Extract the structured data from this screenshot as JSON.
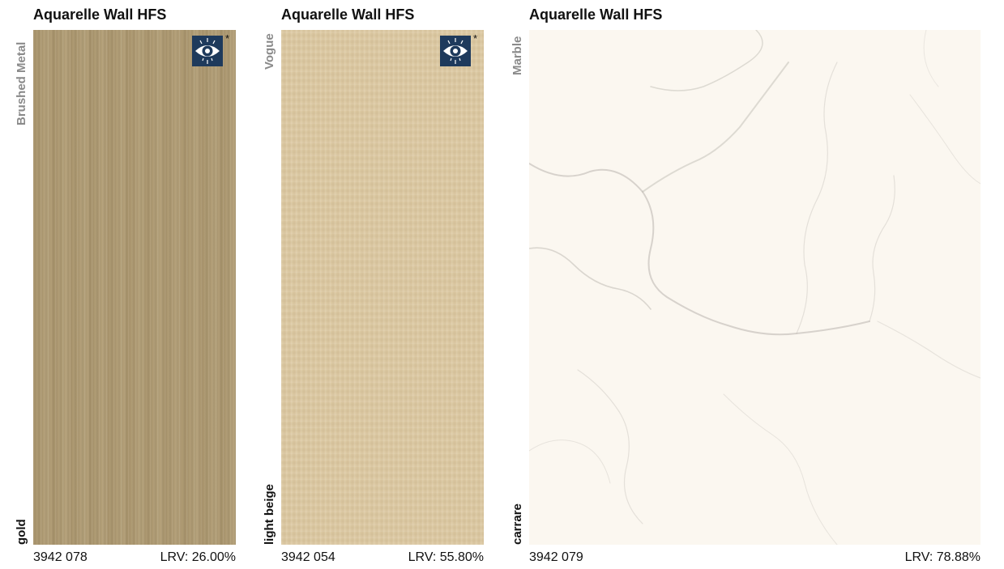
{
  "panels": [
    {
      "title": "Aquarelle Wall HFS",
      "decor_type": "Brushed Metal",
      "color_name": "gold",
      "code": "3942 078",
      "lrv": "LRV: 26.00%",
      "swatch_color": "#ae9a72",
      "has_eye_icon": true,
      "eye_note": "*"
    },
    {
      "title": "Aquarelle Wall HFS",
      "decor_type": "Vogue",
      "color_name": "light beige",
      "code": "3942 054",
      "lrv": "LRV: 55.80%",
      "swatch_color": "#dcc9a3",
      "has_eye_icon": true,
      "eye_note": "*"
    },
    {
      "title": "Aquarelle Wall HFS",
      "decor_type": "Marble",
      "color_name": "carrare",
      "code": "3942 079",
      "lrv": "LRV: 78.88%",
      "swatch_color": "#fbf7f0",
      "has_eye_icon": false
    }
  ],
  "colors": {
    "eye_icon_bg": "#1e3a5c",
    "secondary_label": "#8a8a8a"
  },
  "icons": [
    "eye-icon"
  ]
}
